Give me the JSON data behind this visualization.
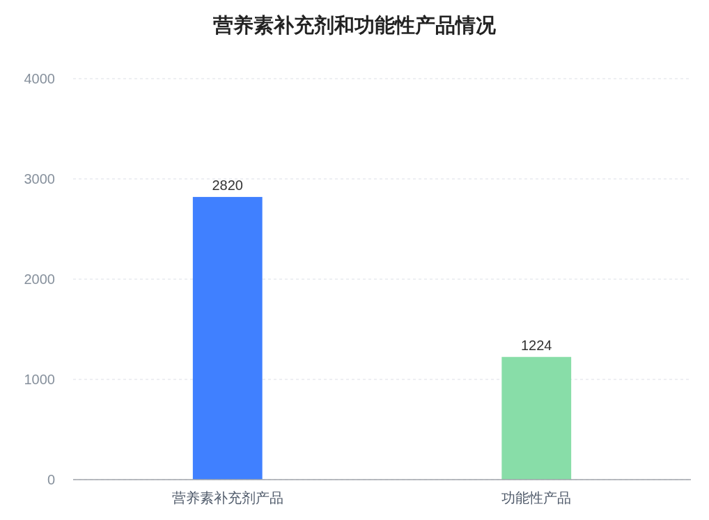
{
  "chart_data": {
    "type": "bar",
    "title": "营养素补充剂和功能性产品情况",
    "categories": [
      "营养素补充剂产品",
      "功能性产品"
    ],
    "values": [
      2820,
      1224
    ],
    "colors": [
      "#4080ff",
      "#88dda8"
    ],
    "ylim": [
      0,
      4000
    ],
    "yticks": [
      0,
      1000,
      2000,
      3000,
      4000
    ],
    "grid": "y",
    "data_labels": true
  }
}
